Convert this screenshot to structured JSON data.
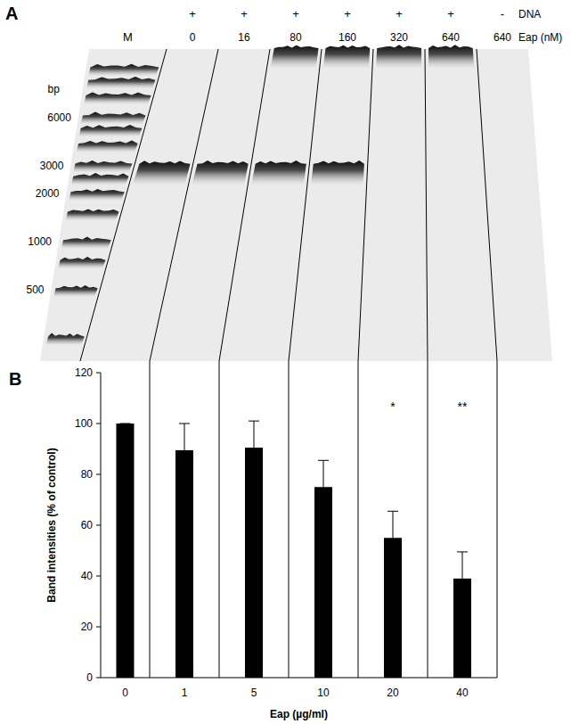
{
  "panel_a": {
    "label": "A",
    "row_labels": {
      "dna": "DNA",
      "eap": "Eap (nM)"
    },
    "marker_lane": "M",
    "bp_axis": {
      "label": "bp",
      "lim": [
        180,
        16000
      ],
      "ticks": [
        6000,
        3000,
        2000,
        1000,
        500
      ],
      "log": true
    },
    "ladder_bands_bp": [
      12000,
      10000,
      8000,
      6000,
      5000,
      4000,
      3000,
      2500,
      2000,
      1500,
      1000,
      750,
      500,
      250
    ],
    "free_band_bp": 2700,
    "lanes": [
      {
        "dna": "+",
        "eap": 0,
        "free_band": true,
        "well_shift": false
      },
      {
        "dna": "+",
        "eap": 16,
        "free_band": true,
        "well_shift": false
      },
      {
        "dna": "+",
        "eap": 80,
        "free_band": true,
        "well_shift": true
      },
      {
        "dna": "+",
        "eap": 160,
        "free_band": true,
        "well_shift": true
      },
      {
        "dna": "+",
        "eap": 320,
        "free_band": false,
        "well_shift": true
      },
      {
        "dna": "+",
        "eap": 640,
        "free_band": false,
        "well_shift": true
      },
      {
        "dna": "-",
        "eap": 640,
        "free_band": false,
        "well_shift": false
      }
    ]
  },
  "chart_data": {
    "type": "bar",
    "label": "B",
    "categories": [
      0,
      1,
      5,
      10,
      20,
      40
    ],
    "values": [
      100,
      89.5,
      90.5,
      75,
      55,
      39
    ],
    "errors": [
      0,
      10.5,
      10.5,
      10.5,
      10.5,
      10.5
    ],
    "color": "#000000",
    "ylim": [
      0,
      120
    ],
    "yticks": [
      0,
      20,
      40,
      60,
      80,
      100,
      120
    ],
    "x_label": "Eap (µg/ml)",
    "y_label": "Band intensities (% of control)",
    "annotations": [
      {
        "category": 20,
        "text": "*",
        "y": 105
      },
      {
        "category": 40,
        "text": "**",
        "y": 105
      }
    ]
  }
}
